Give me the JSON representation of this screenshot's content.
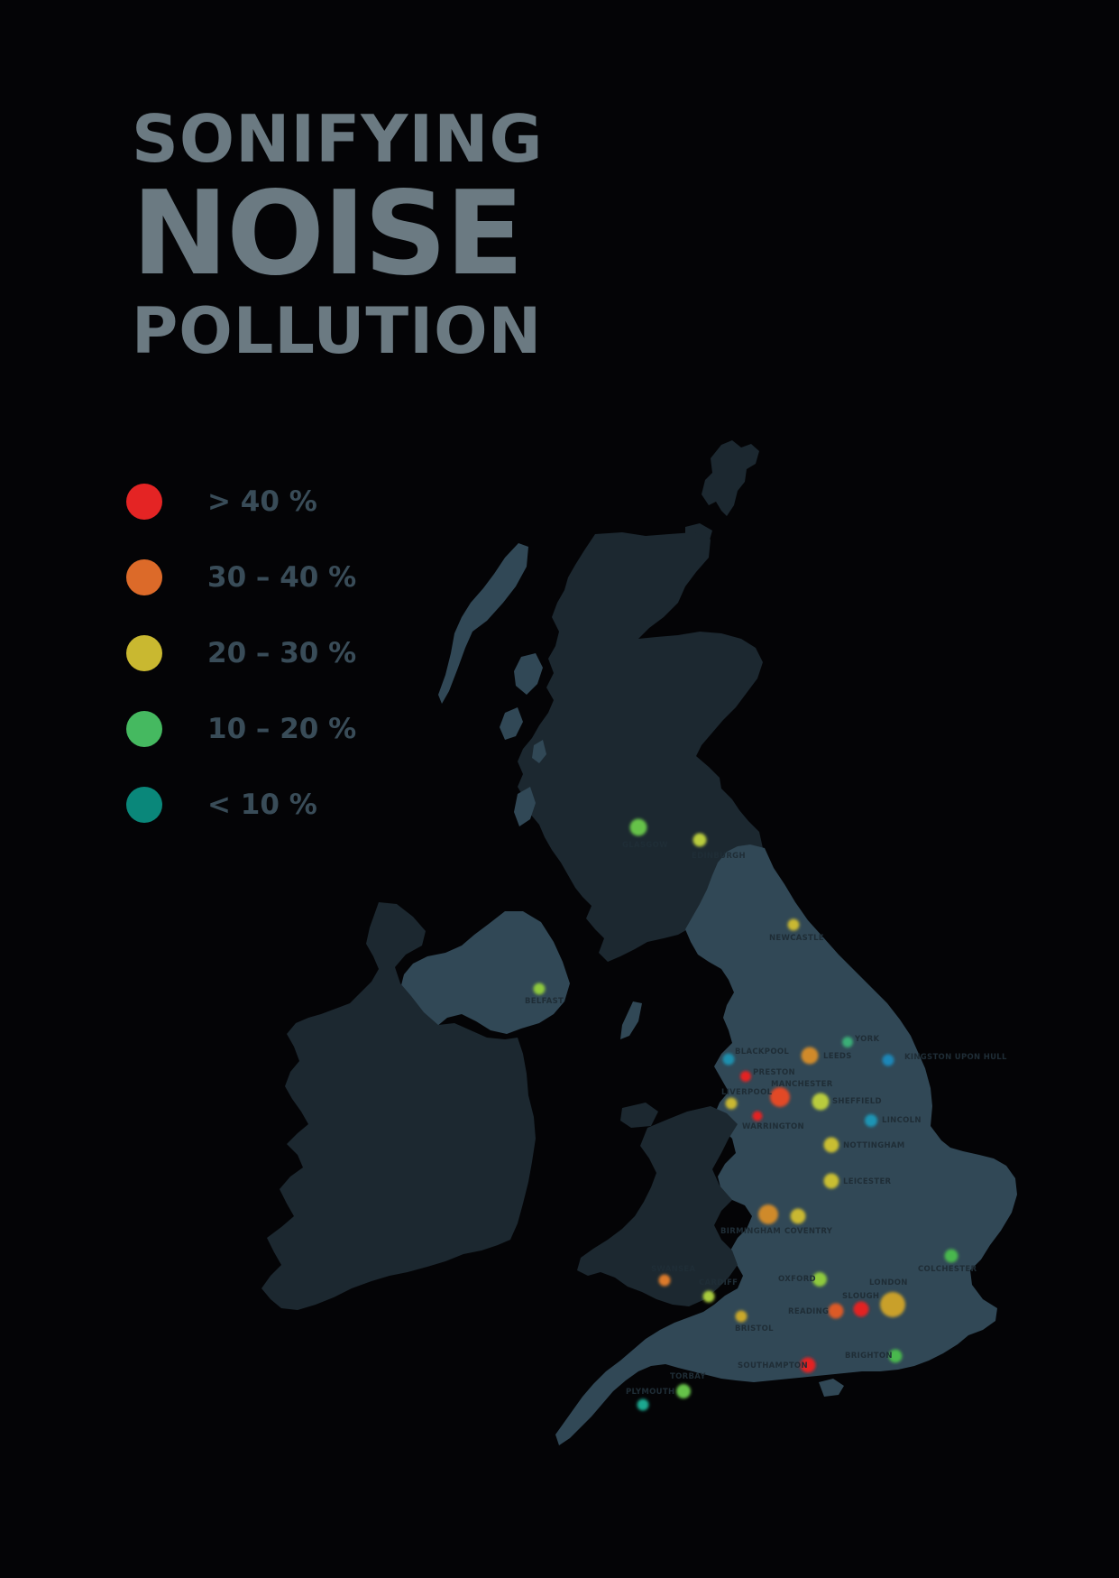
{
  "title": {
    "line1": "SONIFYING",
    "line2": "NOISE",
    "line3": "POLLUTION"
  },
  "legend": [
    {
      "label": "> 40 %",
      "color": "#e42424"
    },
    {
      "label": "30 – 40 %",
      "color": "#dc6a29"
    },
    {
      "label": "20 – 30 %",
      "color": "#c9b830"
    },
    {
      "label": "10 – 20 %",
      "color": "#45b960"
    },
    {
      "label": "< 10 %",
      "color": "#0a877a"
    }
  ],
  "colors": {
    "background": "#040406",
    "title": "#6b7a82",
    "land_light": "#314856",
    "land_dark": "#1c2830"
  },
  "cities": [
    {
      "name": "GLASGOW",
      "band": "10 – 20 %",
      "color": "#66c24a"
    },
    {
      "name": "EDINBURGH",
      "band": "20 – 30 %",
      "color": "#b9cc3c"
    },
    {
      "name": "NEWCASTLE",
      "band": "20 – 30 %",
      "color": "#c9b830"
    },
    {
      "name": "BELFAST",
      "band": "10 – 20 %",
      "color": "#8fca3e"
    },
    {
      "name": "BLACKPOOL",
      "band": "< 10 %",
      "color": "#1f8fae"
    },
    {
      "name": "LEEDS",
      "band": "30 – 40 %",
      "color": "#d08a2c"
    },
    {
      "name": "YORK",
      "band": "10 – 20 %",
      "color": "#3aae77"
    },
    {
      "name": "KINGSTON UPON HULL",
      "band": "< 10 %",
      "color": "#1e86b8"
    },
    {
      "name": "PRESTON",
      "band": "> 40 %",
      "color": "#e42424"
    },
    {
      "name": "MANCHESTER",
      "band": "> 40 %",
      "color": "#e24a28"
    },
    {
      "name": "LIVERPOOL",
      "band": "20 – 30 %",
      "color": "#c9b830"
    },
    {
      "name": "SHEFFIELD",
      "band": "20 – 30 %",
      "color": "#b9cc3c"
    },
    {
      "name": "WARRINGTON",
      "band": "> 40 %",
      "color": "#e42424"
    },
    {
      "name": "LINCOLN",
      "band": "< 10 %",
      "color": "#1e94b4"
    },
    {
      "name": "NOTTINGHAM",
      "band": "20 – 30 %",
      "color": "#c9be32"
    },
    {
      "name": "LEICESTER",
      "band": "20 – 30 %",
      "color": "#c9be32"
    },
    {
      "name": "BIRMINGHAM",
      "band": "30 – 40 %",
      "color": "#cf8a2c"
    },
    {
      "name": "COVENTRY",
      "band": "20 – 30 %",
      "color": "#c9b830"
    },
    {
      "name": "COLCHESTER",
      "band": "10 – 20 %",
      "color": "#4ab84e"
    },
    {
      "name": "SWANSEA",
      "band": "30 – 40 %",
      "color": "#dc7a29"
    },
    {
      "name": "CARDIFF",
      "band": "20 – 30 %",
      "color": "#a9cc3c"
    },
    {
      "name": "OXFORD",
      "band": "10 – 20 %",
      "color": "#8fca3e"
    },
    {
      "name": "LONDON",
      "band": "20 – 30 %",
      "color": "#c9a02c"
    },
    {
      "name": "SLOUGH",
      "band": "> 40 %",
      "color": "#e42424"
    },
    {
      "name": "READING",
      "band": "30 – 40 %",
      "color": "#dc5a28"
    },
    {
      "name": "BRISTOL",
      "band": "20 – 30 %",
      "color": "#c9a82c"
    },
    {
      "name": "BRIGHTON",
      "band": "10 – 20 %",
      "color": "#4ab84e"
    },
    {
      "name": "SOUTHAMPTON",
      "band": "> 40 %",
      "color": "#e42424"
    },
    {
      "name": "TORBAY",
      "band": "10 – 20 %",
      "color": "#66c24a"
    },
    {
      "name": "PLYMOUTH",
      "band": "< 10 %",
      "color": "#1aa890"
    }
  ]
}
